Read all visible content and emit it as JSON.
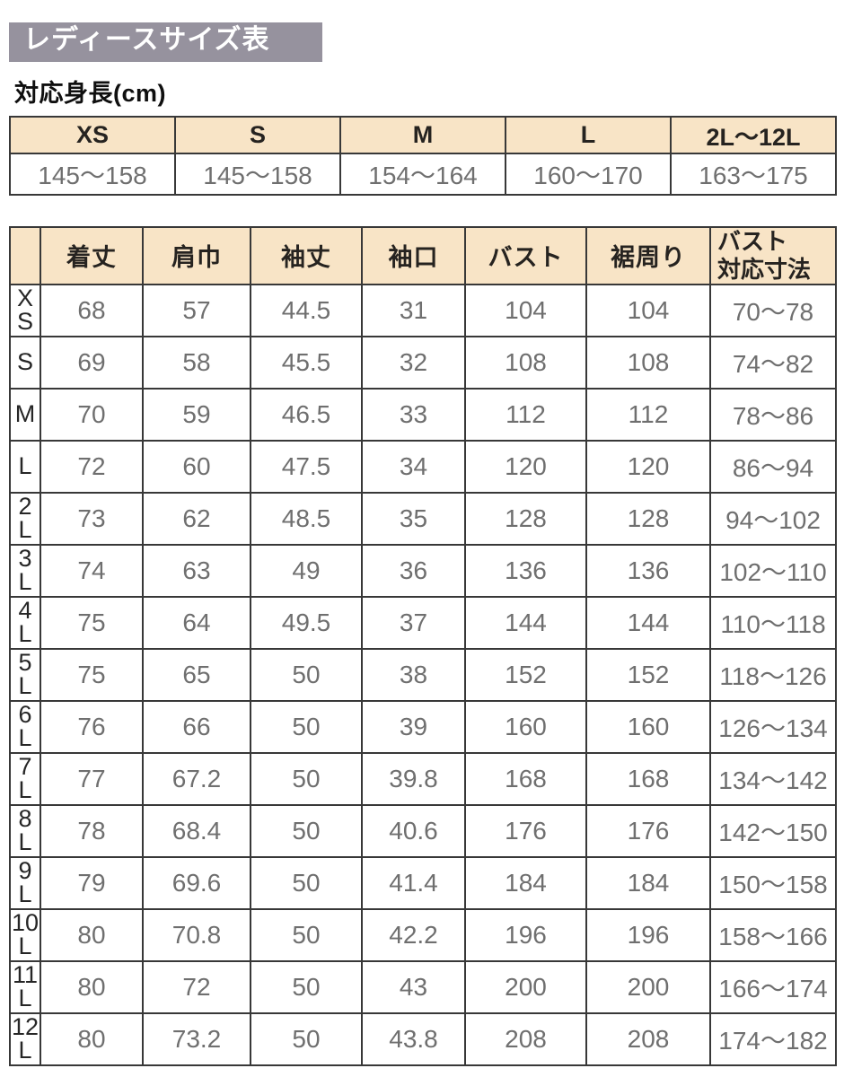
{
  "page": {
    "title": "レディースサイズ表",
    "subtitle": "対応身長(cm)"
  },
  "colors": {
    "title_bg": "#96929e",
    "title_text": "#ffffff",
    "header_bg": "#f8e4c6",
    "border": "#383838",
    "header_text": "#262320",
    "data_text": "#6f6f6f",
    "label_text": "#262626"
  },
  "height_table": {
    "columns": [
      "XS",
      "S",
      "M",
      "L",
      "2L〜12L"
    ],
    "values": [
      "145〜158",
      "145〜158",
      "154〜164",
      "160〜170",
      "163〜175"
    ]
  },
  "size_table": {
    "headers": [
      "",
      "着丈",
      "肩巾",
      "袖丈",
      "袖口",
      "バスト",
      "裾周り",
      "バスト\n対応寸法"
    ],
    "rows": [
      {
        "label": "X\nS",
        "values": [
          "68",
          "57",
          "44.5",
          "31",
          "104",
          "104",
          "70〜78"
        ]
      },
      {
        "label": "S",
        "values": [
          "69",
          "58",
          "45.5",
          "32",
          "108",
          "108",
          "74〜82"
        ]
      },
      {
        "label": "M",
        "values": [
          "70",
          "59",
          "46.5",
          "33",
          "112",
          "112",
          "78〜86"
        ]
      },
      {
        "label": "L",
        "values": [
          "72",
          "60",
          "47.5",
          "34",
          "120",
          "120",
          "86〜94"
        ]
      },
      {
        "label": "2\nL",
        "values": [
          "73",
          "62",
          "48.5",
          "35",
          "128",
          "128",
          "94〜102"
        ]
      },
      {
        "label": "3\nL",
        "values": [
          "74",
          "63",
          "49",
          "36",
          "136",
          "136",
          "102〜110"
        ]
      },
      {
        "label": "4\nL",
        "values": [
          "75",
          "64",
          "49.5",
          "37",
          "144",
          "144",
          "110〜118"
        ]
      },
      {
        "label": "5\nL",
        "values": [
          "75",
          "65",
          "50",
          "38",
          "152",
          "152",
          "118〜126"
        ]
      },
      {
        "label": "6\nL",
        "values": [
          "76",
          "66",
          "50",
          "39",
          "160",
          "160",
          "126〜134"
        ]
      },
      {
        "label": "7\nL",
        "values": [
          "77",
          "67.2",
          "50",
          "39.8",
          "168",
          "168",
          "134〜142"
        ]
      },
      {
        "label": "8\nL",
        "values": [
          "78",
          "68.4",
          "50",
          "40.6",
          "176",
          "176",
          "142〜150"
        ]
      },
      {
        "label": "9\nL",
        "values": [
          "79",
          "69.6",
          "50",
          "41.4",
          "184",
          "184",
          "150〜158"
        ]
      },
      {
        "label": "10\nL",
        "values": [
          "80",
          "70.8",
          "50",
          "42.2",
          "196",
          "196",
          "158〜166"
        ]
      },
      {
        "label": "11\nL",
        "values": [
          "80",
          "72",
          "50",
          "43",
          "200",
          "200",
          "166〜174"
        ]
      },
      {
        "label": "12\nL",
        "values": [
          "80",
          "73.2",
          "50",
          "43.8",
          "208",
          "208",
          "174〜182"
        ]
      }
    ]
  }
}
